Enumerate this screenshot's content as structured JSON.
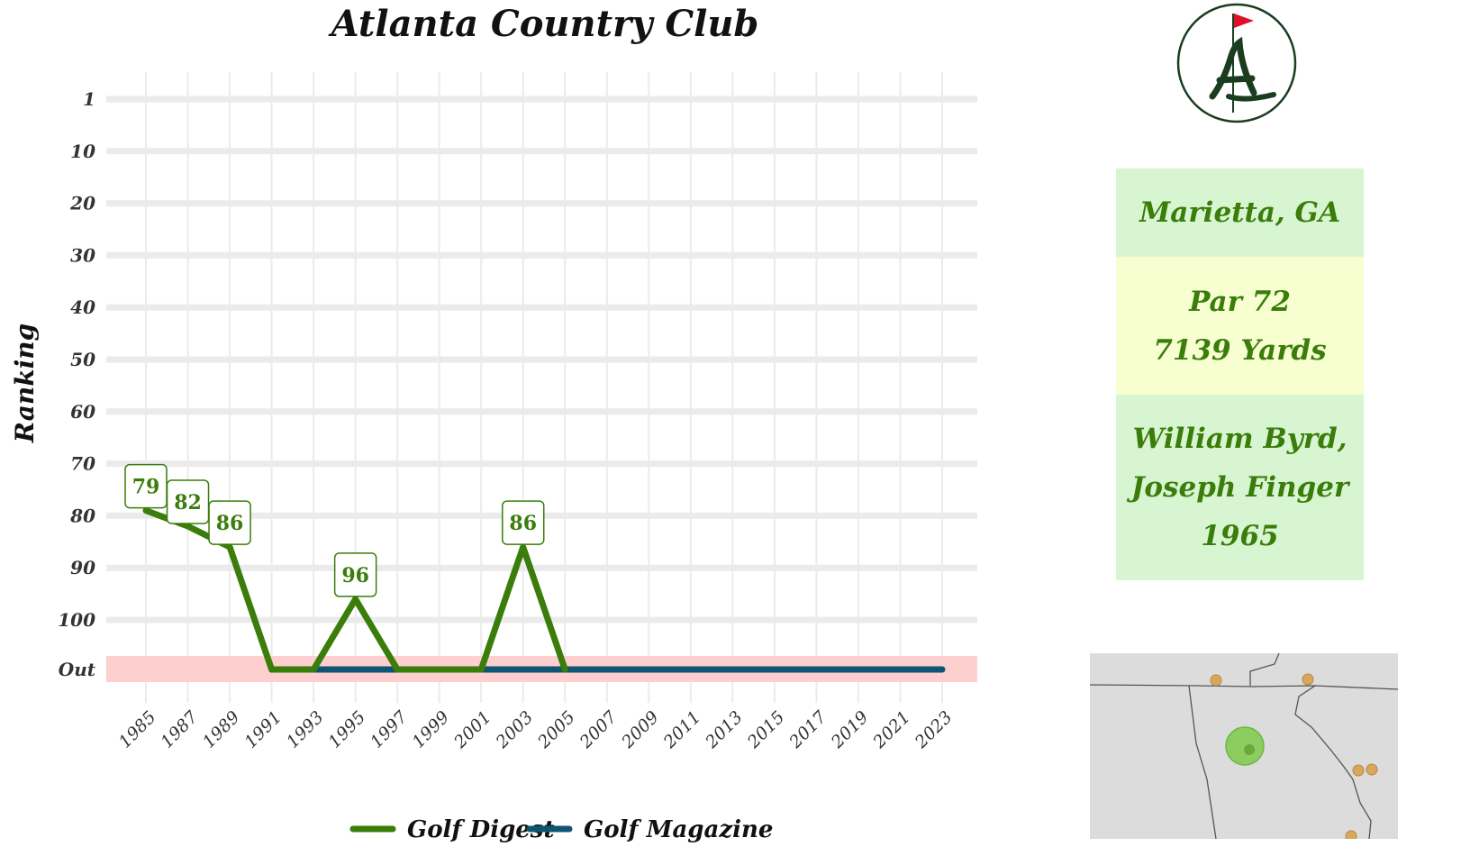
{
  "chart_data": {
    "type": "line",
    "title": "Atlanta Country Club",
    "ylabel": "Ranking",
    "xlabel": "",
    "y_ticks": [
      "1",
      "10",
      "20",
      "30",
      "40",
      "50",
      "60",
      "70",
      "80",
      "90",
      "100",
      "Out"
    ],
    "y_out_label": "Out",
    "x_ticks": [
      "1985",
      "1987",
      "1989",
      "1991",
      "1993",
      "1995",
      "1997",
      "1999",
      "2001",
      "2003",
      "2005",
      "2007",
      "2009",
      "2011",
      "2013",
      "2015",
      "2017",
      "2019",
      "2021",
      "2023"
    ],
    "x_range": [
      1985,
      2023
    ],
    "grid": true,
    "legend_position": "bottom",
    "series": [
      {
        "name": "Golf Digest",
        "color": "#3a7d0a",
        "points": [
          {
            "x": 1985,
            "y": 79
          },
          {
            "x": 1987,
            "y": 82
          },
          {
            "x": 1989,
            "y": 86
          },
          {
            "x": 1991,
            "y": "Out"
          },
          {
            "x": 1993,
            "y": "Out"
          },
          {
            "x": 1995,
            "y": 96
          },
          {
            "x": 1997,
            "y": "Out"
          },
          {
            "x": 1999,
            "y": "Out"
          },
          {
            "x": 2001,
            "y": "Out"
          },
          {
            "x": 2003,
            "y": 86
          },
          {
            "x": 2005,
            "y": "Out"
          }
        ],
        "data_labels": [
          {
            "x": 1985,
            "y": 79,
            "text": "79"
          },
          {
            "x": 1987,
            "y": 82,
            "text": "82"
          },
          {
            "x": 1989,
            "y": 86,
            "text": "86"
          },
          {
            "x": 1995,
            "y": 96,
            "text": "96"
          },
          {
            "x": 2003,
            "y": 86,
            "text": "86"
          }
        ]
      },
      {
        "name": "Golf Magazine",
        "color": "#0f5473",
        "points": [
          {
            "x": 1991,
            "y": "Out"
          },
          {
            "x": 2023,
            "y": "Out"
          }
        ]
      }
    ]
  },
  "info_panel": {
    "location": "Marietta, GA",
    "par": "Par 72",
    "yards": "7139 Yards",
    "architect_1": "William Byrd,",
    "architect_2": "Joseph Finger",
    "year": "1965"
  },
  "colors": {
    "out_band": "#fdd0cf",
    "grid": "#ebebeb",
    "logo_ring": "#1a3d1f",
    "logo_flag": "#e0102a",
    "map_land": "#dcdcdc",
    "map_course": "#7ec94a",
    "map_other": "#d6a75c"
  }
}
